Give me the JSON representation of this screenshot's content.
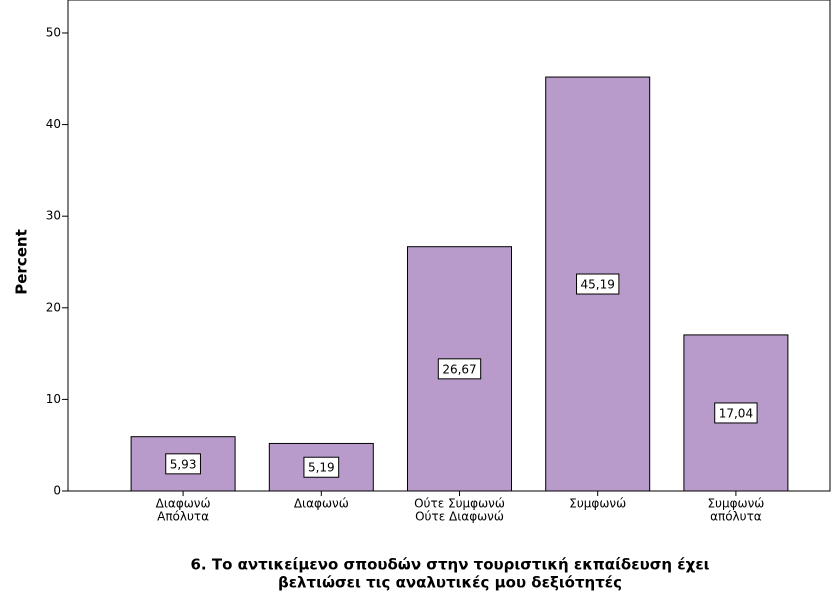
{
  "chart_data": {
    "type": "bar",
    "categories": [
      [
        "Διαφωνώ",
        "Απόλυτα"
      ],
      [
        "Διαφωνώ"
      ],
      [
        "Ούτε Συμφωνώ",
        "Ούτε Διαφωνώ"
      ],
      [
        "Συμφωνώ"
      ],
      [
        "Συμφωνώ",
        "απόλυτα"
      ]
    ],
    "values": [
      5.93,
      5.19,
      26.67,
      45.19,
      17.04
    ],
    "value_labels": [
      "5,93",
      "5,19",
      "26,67",
      "45,19",
      "17,04"
    ],
    "color": "#b89bcb",
    "ylabel": "Percent",
    "xlabel": [
      "6. Το αντικείμενο σπουδών στην τουριστική εκπαίδευση έχει",
      "βελτιώσει τις αναλυτικές μου δεξιότητές"
    ],
    "ylim": [
      0,
      53.6
    ],
    "yticks": [
      0,
      10,
      20,
      30,
      40,
      50
    ],
    "grid": false
  }
}
